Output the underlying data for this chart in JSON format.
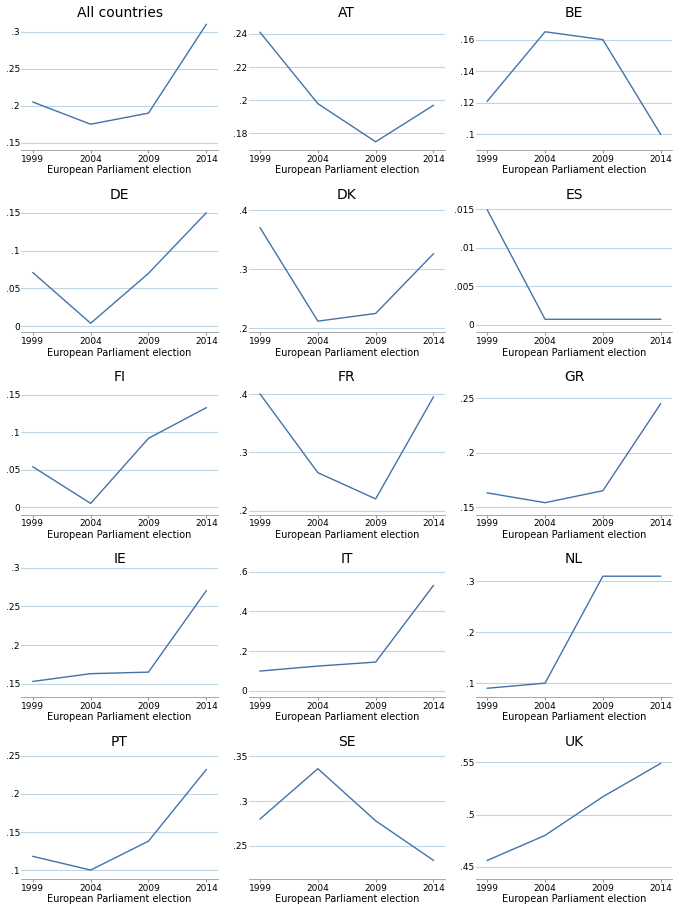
{
  "years": [
    1999,
    2004,
    2009,
    2014
  ],
  "panels": [
    {
      "title": "All countries",
      "values": [
        0.205,
        0.175,
        0.19,
        0.31
      ],
      "ylim": [
        0.14,
        0.315
      ],
      "yticks": [
        0.15,
        0.2,
        0.25,
        0.3
      ],
      "ytick_labels": [
        ".15",
        ".2",
        ".25",
        ".3"
      ]
    },
    {
      "title": "AT",
      "values": [
        0.241,
        0.198,
        0.175,
        0.197
      ],
      "ylim": [
        0.17,
        0.248
      ],
      "yticks": [
        0.18,
        0.2,
        0.22,
        0.24
      ],
      "ytick_labels": [
        ".18",
        ".2",
        ".22",
        ".24"
      ]
    },
    {
      "title": "BE",
      "values": [
        0.121,
        0.165,
        0.16,
        0.1
      ],
      "ylim": [
        0.09,
        0.172
      ],
      "yticks": [
        0.1,
        0.12,
        0.14,
        0.16
      ],
      "ytick_labels": [
        ".1",
        ".12",
        ".14",
        ".16"
      ]
    },
    {
      "title": "DE",
      "values": [
        0.071,
        0.004,
        0.07,
        0.15
      ],
      "ylim": [
        -0.008,
        0.163
      ],
      "yticks": [
        0.0,
        0.05,
        0.1,
        0.15
      ],
      "ytick_labels": [
        "0",
        ".05",
        ".1",
        ".15"
      ]
    },
    {
      "title": "DK",
      "values": [
        0.37,
        0.212,
        0.225,
        0.326
      ],
      "ylim": [
        0.193,
        0.412
      ],
      "yticks": [
        0.2,
        0.3,
        0.4
      ],
      "ytick_labels": [
        ".2",
        ".3",
        ".4"
      ]
    },
    {
      "title": "ES",
      "values": [
        0.0149,
        0.0007,
        0.0007,
        0.0007
      ],
      "ylim": [
        -0.001,
        0.0158
      ],
      "yticks": [
        0.0,
        0.005,
        0.01,
        0.015
      ],
      "ytick_labels": [
        "0",
        ".005",
        ".01",
        ".015"
      ]
    },
    {
      "title": "FI",
      "values": [
        0.054,
        0.005,
        0.092,
        0.133
      ],
      "ylim": [
        -0.01,
        0.163
      ],
      "yticks": [
        0.0,
        0.05,
        0.1,
        0.15
      ],
      "ytick_labels": [
        "0",
        ".05",
        ".1",
        ".15"
      ]
    },
    {
      "title": "FR",
      "values": [
        0.4,
        0.265,
        0.22,
        0.395
      ],
      "ylim": [
        0.193,
        0.415
      ],
      "yticks": [
        0.2,
        0.3,
        0.4
      ],
      "ytick_labels": [
        ".2",
        ".3",
        ".4"
      ]
    },
    {
      "title": "GR",
      "values": [
        0.163,
        0.154,
        0.165,
        0.245
      ],
      "ylim": [
        0.143,
        0.262
      ],
      "yticks": [
        0.15,
        0.2,
        0.25
      ],
      "ytick_labels": [
        ".15",
        ".2",
        ".25"
      ]
    },
    {
      "title": "IE",
      "values": [
        0.153,
        0.163,
        0.165,
        0.27
      ],
      "ylim": [
        0.133,
        0.292
      ],
      "yticks": [
        0.15,
        0.2,
        0.25,
        0.3
      ],
      "ytick_labels": [
        ".15",
        ".2",
        ".25",
        ".3"
      ]
    },
    {
      "title": "IT",
      "values": [
        0.1,
        0.125,
        0.145,
        0.53
      ],
      "ylim": [
        -0.03,
        0.62
      ],
      "yticks": [
        0.0,
        0.2,
        0.4,
        0.6
      ],
      "ytick_labels": [
        "0",
        ".2",
        ".4",
        ".6"
      ]
    },
    {
      "title": "NL",
      "values": [
        0.09,
        0.1,
        0.31,
        0.31
      ],
      "ylim": [
        0.073,
        0.327
      ],
      "yticks": [
        0.1,
        0.2,
        0.3
      ],
      "ytick_labels": [
        ".1",
        ".2",
        ".3"
      ]
    },
    {
      "title": "PT",
      "values": [
        0.118,
        0.1,
        0.138,
        0.232
      ],
      "ylim": [
        0.088,
        0.258
      ],
      "yticks": [
        0.1,
        0.15,
        0.2,
        0.25
      ],
      "ytick_labels": [
        ".1",
        ".15",
        ".2",
        ".25"
      ]
    },
    {
      "title": "SE",
      "values": [
        0.28,
        0.336,
        0.278,
        0.234
      ],
      "ylim": [
        0.213,
        0.357
      ],
      "yticks": [
        0.25,
        0.3,
        0.35
      ],
      "ytick_labels": [
        ".25",
        ".3",
        ".35"
      ]
    },
    {
      "title": "UK",
      "values": [
        0.456,
        0.48,
        0.517,
        0.549
      ],
      "ylim": [
        0.438,
        0.562
      ],
      "yticks": [
        0.45,
        0.5,
        0.55
      ],
      "ytick_labels": [
        ".45",
        ".5",
        ".55"
      ]
    }
  ],
  "line_color": "#4472a8",
  "grid_color": "#bdd7e7",
  "xlabel": "European Parliament election",
  "xticks": [
    1999,
    2004,
    2009,
    2014
  ],
  "xtick_labels": [
    "1999",
    "2004",
    "2009",
    "2014"
  ],
  "background_color": "#ffffff",
  "title_fontsize": 10,
  "tick_fontsize": 6.5,
  "xlabel_fontsize": 7
}
